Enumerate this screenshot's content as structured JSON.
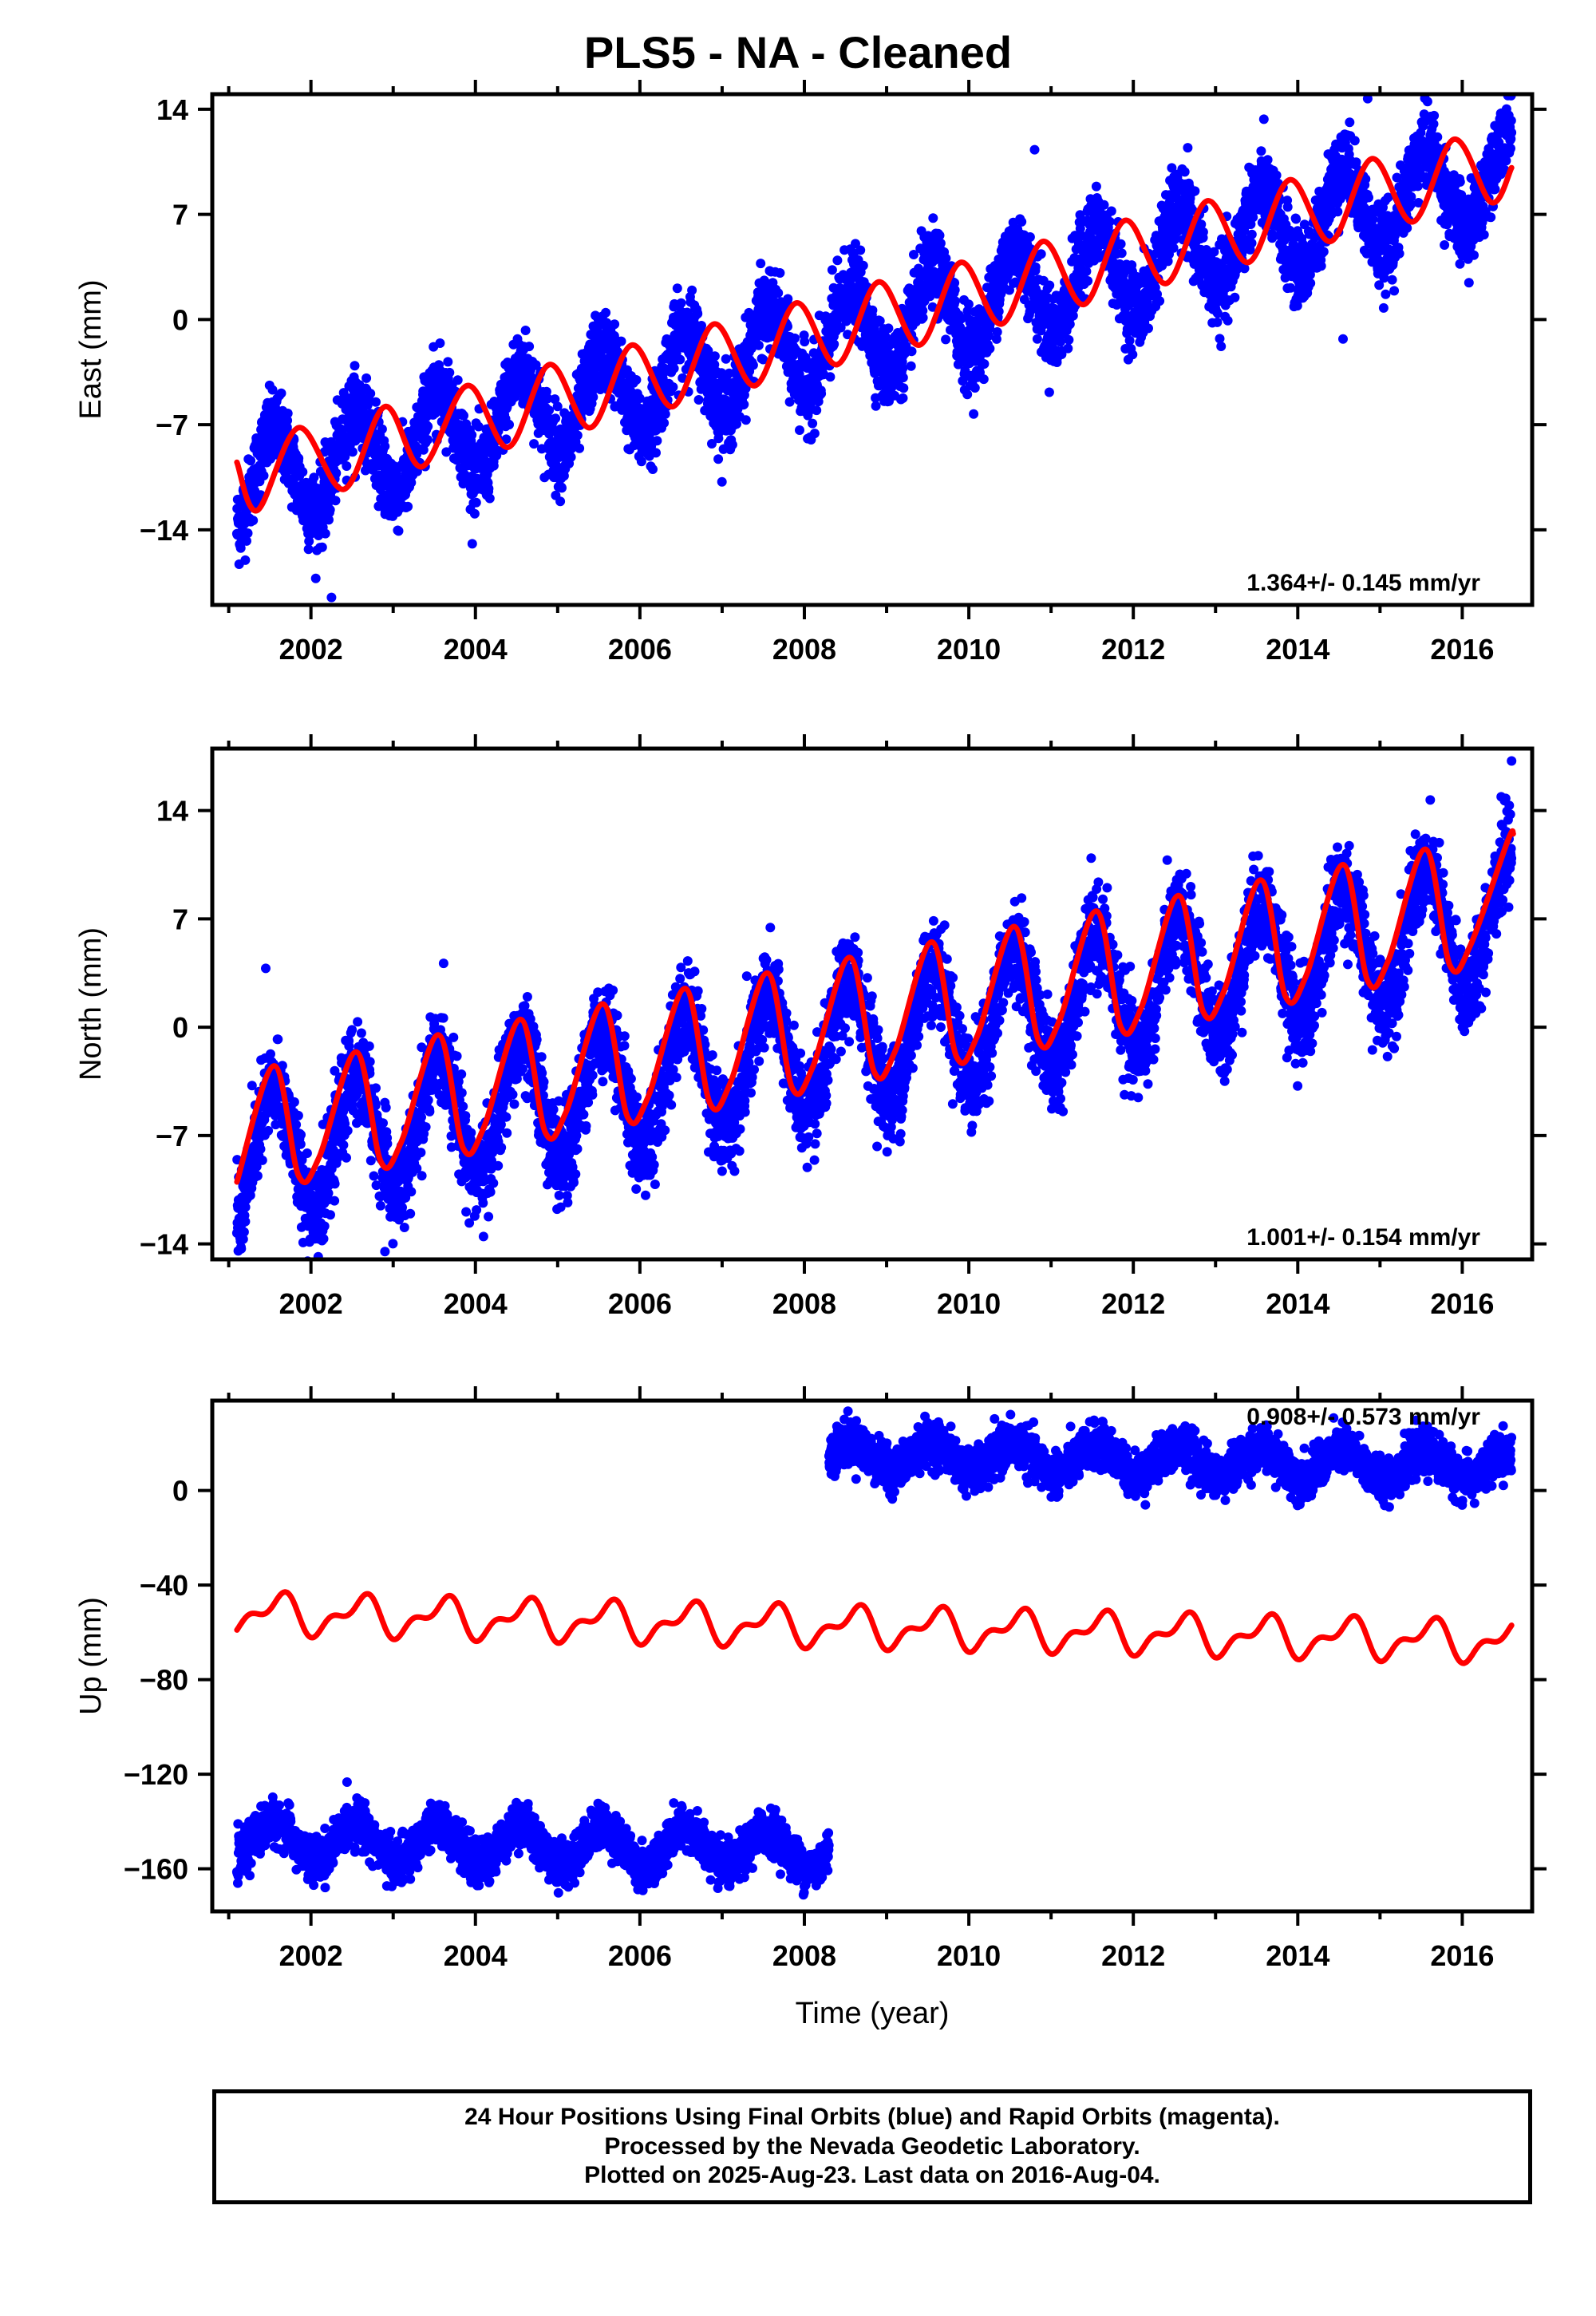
{
  "title": "PLS5  - NA - Cleaned",
  "footer": {
    "line1": "24 Hour Positions Using Final Orbits (blue) and Rapid Orbits (magenta).",
    "line2": "Processed by the Nevada Geodetic Laboratory.",
    "line3": "Plotted on 2025-Aug-23. Last data on 2016-Aug-04."
  },
  "colors": {
    "data": "#0000ff",
    "model": "#ff0000",
    "axes": "#000000"
  },
  "chart_data": [
    {
      "type": "scatter",
      "panel": "east",
      "ylabel": "East (mm)",
      "xlabel": "",
      "xlim": [
        2000.8,
        2016.85
      ],
      "ylim": [
        -19,
        15
      ],
      "yticks": [
        14,
        7,
        0,
        -7,
        -14
      ],
      "xticks": [
        2002,
        2004,
        2006,
        2008,
        2010,
        2012,
        2014,
        2016
      ],
      "rate_label": "1.364+/- 0.145 mm/yr",
      "series": [
        {
          "kind": "observations",
          "x_range": [
            2001.1,
            2016.6
          ],
          "trend": {
            "y_at_start": -11,
            "y_at_end": 9.8
          },
          "annual_amplitude": 3.0,
          "noise": 1.3,
          "outliers": [
            [
              2002.25,
              -18.5
            ],
            [
              2010.8,
              11.3
            ],
            [
              2014.55,
              -1.3
            ],
            [
              2014.85,
              14.7
            ]
          ]
        },
        {
          "kind": "model",
          "x": [
            2001.1,
            2001.35,
            2001.85,
            2002.4,
            2002.9,
            2003.35,
            2003.9,
            2004.4,
            2004.9,
            2005.4,
            2005.9,
            2006.4,
            2006.9,
            2007.4,
            2007.9,
            2008.4,
            2008.9,
            2009.4,
            2009.9,
            2010.4,
            2010.9,
            2011.4,
            2011.9,
            2012.4,
            2012.9,
            2013.4,
            2013.9,
            2014.4,
            2014.9,
            2015.4,
            2015.9,
            2016.35,
            2016.6
          ],
          "y": [
            -9.5,
            -12.7,
            -7.2,
            -11.3,
            -5.8,
            -9.8,
            -4.4,
            -8.5,
            -3.0,
            -7.2,
            -1.7,
            -5.8,
            -0.3,
            -4.4,
            1.1,
            -3.0,
            2.5,
            -1.7,
            3.8,
            -0.3,
            5.2,
            1.0,
            6.6,
            2.4,
            7.9,
            3.8,
            9.3,
            5.2,
            10.7,
            6.5,
            12.0,
            7.8,
            10.1
          ]
        }
      ]
    },
    {
      "type": "scatter",
      "panel": "north",
      "ylabel": "North (mm)",
      "xlabel": "",
      "xlim": [
        2000.8,
        2016.85
      ],
      "ylim": [
        -15,
        18
      ],
      "yticks": [
        14,
        7,
        0,
        -7,
        -14
      ],
      "xticks": [
        2002,
        2004,
        2006,
        2008,
        2010,
        2012,
        2014,
        2016
      ],
      "rate_label": "1.001+/- 0.154 mm/yr",
      "series": [
        {
          "kind": "observations",
          "x_range": [
            2001.1,
            2016.6
          ],
          "trend": {
            "y_at_start": -8.5,
            "y_at_end": 7.0
          },
          "annual_amplitude": 4.0,
          "noise": 1.5,
          "outliers": [
            [
              2001.45,
              3.8
            ],
            [
              2002.9,
              -14.5
            ],
            [
              2007.3,
              3.3
            ],
            [
              2007.0,
              -9.3
            ],
            [
              2016.6,
              17.2
            ]
          ]
        },
        {
          "kind": "model",
          "x": [
            2001.1,
            2001.55,
            2001.85,
            2002.1,
            2002.55,
            2002.85,
            2003.1,
            2003.55,
            2003.85,
            2004.1,
            2004.55,
            2004.85,
            2005.1,
            2005.55,
            2005.85,
            2006.1,
            2006.55,
            2006.85,
            2007.1,
            2007.55,
            2007.85,
            2008.1,
            2008.55,
            2008.85,
            2009.1,
            2009.55,
            2009.85,
            2010.1,
            2010.55,
            2010.85,
            2011.1,
            2011.55,
            2011.85,
            2012.1,
            2012.55,
            2012.85,
            2013.1,
            2013.55,
            2013.85,
            2014.1,
            2014.55,
            2014.85,
            2015.1,
            2015.55,
            2015.85,
            2016.1,
            2016.55,
            2016.62
          ],
          "y": [
            -10.0,
            -2.5,
            -9.6,
            -8.4,
            -1.6,
            -8.7,
            -7.4,
            -0.5,
            -7.8,
            -6.5,
            0.5,
            -6.8,
            -5.5,
            1.5,
            -5.8,
            -4.5,
            2.5,
            -4.9,
            -3.6,
            3.5,
            -3.9,
            -2.6,
            4.5,
            -2.9,
            -1.6,
            5.5,
            -1.9,
            -0.6,
            6.5,
            -0.9,
            0.4,
            7.5,
            0.0,
            1.3,
            8.5,
            1.0,
            2.3,
            9.5,
            2.0,
            3.3,
            10.5,
            3.0,
            4.3,
            11.5,
            4.0,
            5.3,
            12.0,
            12.5
          ]
        }
      ]
    },
    {
      "type": "scatter",
      "panel": "up",
      "ylabel": "Up (mm)",
      "xlabel": "Time (year)",
      "xlim": [
        2000.8,
        2016.85
      ],
      "ylim": [
        -178,
        38
      ],
      "yticks": [
        0,
        -40,
        -80,
        -120,
        -160
      ],
      "xticks": [
        2002,
        2004,
        2006,
        2008,
        2010,
        2012,
        2014,
        2016
      ],
      "rate_label": "0.908+/- 0.573 mm/yr",
      "series": [
        {
          "kind": "observations",
          "segment": "early",
          "x_range": [
            2001.1,
            2008.3
          ],
          "trend": {
            "y_at_start": -148,
            "y_at_end": -152
          },
          "annual_amplitude": 8,
          "noise": 4.5
        },
        {
          "kind": "observations",
          "segment": "late",
          "x_range": [
            2008.3,
            2016.6
          ],
          "trend": {
            "y_at_start": 15,
            "y_at_end": 10
          },
          "annual_amplitude": 6,
          "noise": 4.5
        },
        {
          "kind": "model",
          "x_range": [
            2001.1,
            2016.6
          ],
          "trend": {
            "y_at_start": -52,
            "y_at_end": -64
          },
          "annual_amplitude": 7,
          "semiannual_amplitude": 4
        }
      ]
    }
  ]
}
